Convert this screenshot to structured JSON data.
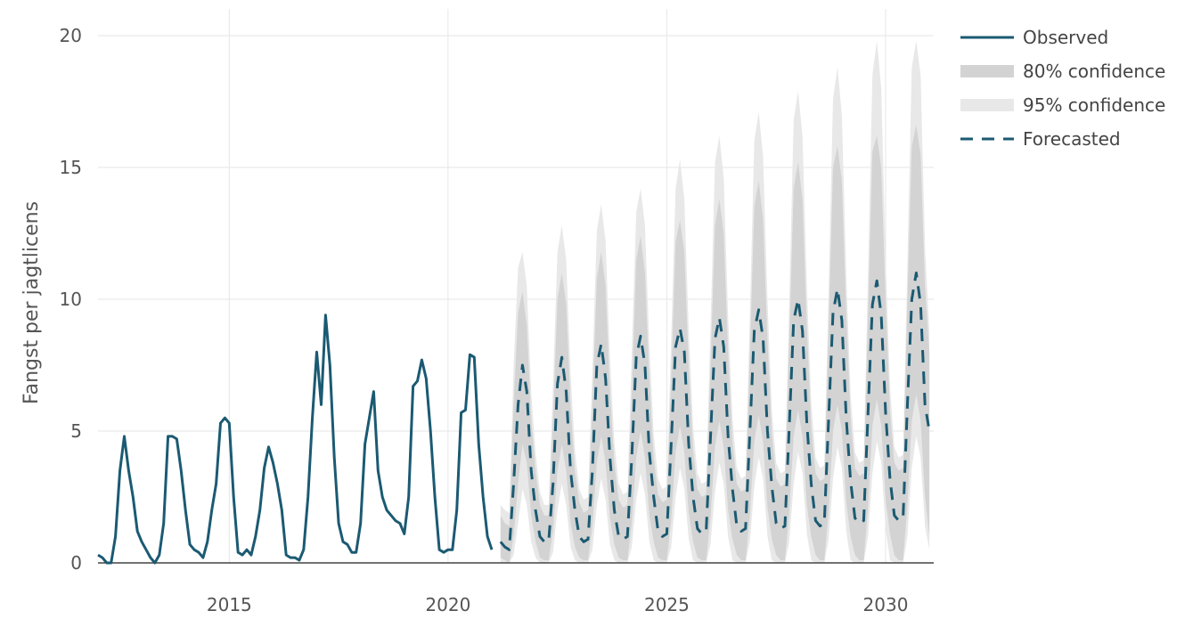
{
  "chart_data": {
    "type": "line",
    "title": "",
    "xlabel": "",
    "ylabel": "Fangst per jagtlicens",
    "xlim": [
      2012.0,
      2031.1
    ],
    "ylim": [
      0,
      20
    ],
    "x_ticks": [
      {
        "value": 2015,
        "label": "2015"
      },
      {
        "value": 2020,
        "label": "2020"
      },
      {
        "value": 2025,
        "label": "2025"
      },
      {
        "value": 2030,
        "label": "2030"
      }
    ],
    "y_ticks": [
      {
        "value": 0,
        "label": "0"
      },
      {
        "value": 5,
        "label": "5"
      },
      {
        "value": 10,
        "label": "10"
      },
      {
        "value": 15,
        "label": "15"
      },
      {
        "value": 20,
        "label": "20"
      }
    ],
    "grid": true,
    "legend_position": "top-right",
    "colors": {
      "observed": "#1b5a72",
      "forecast": "#1b5a72",
      "band80": "#d3d3d3",
      "band95": "#e8e8e8",
      "zero_line": "#444444"
    },
    "series": [
      {
        "name": "Observed",
        "style": "solid",
        "x": [
          2012.0,
          2012.1,
          2012.2,
          2012.3,
          2012.4,
          2012.5,
          2012.6,
          2012.7,
          2012.8,
          2012.9,
          2013.0,
          2013.1,
          2013.2,
          2013.3,
          2013.4,
          2013.5,
          2013.6,
          2013.7,
          2013.8,
          2013.9,
          2014.0,
          2014.1,
          2014.2,
          2014.3,
          2014.4,
          2014.5,
          2014.6,
          2014.7,
          2014.8,
          2014.9,
          2015.0,
          2015.1,
          2015.2,
          2015.3,
          2015.4,
          2015.5,
          2015.6,
          2015.7,
          2015.8,
          2015.9,
          2016.0,
          2016.1,
          2016.2,
          2016.3,
          2016.4,
          2016.5,
          2016.6,
          2016.7,
          2016.8,
          2016.9,
          2017.0,
          2017.1,
          2017.2,
          2017.3,
          2017.4,
          2017.5,
          2017.6,
          2017.7,
          2017.8,
          2017.9,
          2018.0,
          2018.1,
          2018.2,
          2018.3,
          2018.4,
          2018.5,
          2018.6,
          2018.7,
          2018.8,
          2018.9,
          2019.0,
          2019.1,
          2019.2,
          2019.3,
          2019.4,
          2019.5,
          2019.6,
          2019.7,
          2019.8,
          2019.9,
          2020.0,
          2020.1,
          2020.2,
          2020.3,
          2020.4,
          2020.5,
          2020.6,
          2020.7,
          2020.8,
          2020.9,
          2021.0
        ],
        "y": [
          0.3,
          0.2,
          0.0,
          0.0,
          1.0,
          3.5,
          4.8,
          3.5,
          2.5,
          1.2,
          0.8,
          0.5,
          0.2,
          0.0,
          0.3,
          1.5,
          4.8,
          4.8,
          4.7,
          3.5,
          2.0,
          0.7,
          0.5,
          0.4,
          0.2,
          0.8,
          2.0,
          3.0,
          5.3,
          5.5,
          5.3,
          2.5,
          0.4,
          0.3,
          0.5,
          0.3,
          1.0,
          2.0,
          3.6,
          4.4,
          3.8,
          3.0,
          2.0,
          0.3,
          0.2,
          0.2,
          0.1,
          0.5,
          2.5,
          5.5,
          8.0,
          6.0,
          9.4,
          7.5,
          4.0,
          1.5,
          0.8,
          0.7,
          0.4,
          0.4,
          1.5,
          4.5,
          5.5,
          6.5,
          3.5,
          2.5,
          2.0,
          1.8,
          1.6,
          1.5,
          1.1,
          2.5,
          6.7,
          6.9,
          7.7,
          7.0,
          5.0,
          2.5,
          0.5,
          0.4,
          0.5,
          0.5,
          2.0,
          5.7,
          5.8,
          7.9,
          7.8,
          4.5,
          2.5,
          1.0,
          0.5
        ]
      },
      {
        "name": "Forecasted",
        "style": "dash",
        "x": [
          2021.2,
          2021.3,
          2021.4,
          2021.5,
          2021.6,
          2021.7,
          2021.8,
          2021.9,
          2022.0,
          2022.1,
          2022.2,
          2022.3,
          2022.4,
          2022.5,
          2022.6,
          2022.7,
          2022.8,
          2022.9,
          2023.0,
          2023.1,
          2023.2,
          2023.3,
          2023.4,
          2023.5,
          2023.6,
          2023.7,
          2023.8,
          2023.9,
          2024.0,
          2024.1,
          2024.2,
          2024.3,
          2024.4,
          2024.5,
          2024.6,
          2024.7,
          2024.8,
          2024.9,
          2025.0,
          2025.1,
          2025.2,
          2025.3,
          2025.4,
          2025.5,
          2025.6,
          2025.7,
          2025.8,
          2025.9,
          2026.0,
          2026.1,
          2026.2,
          2026.3,
          2026.4,
          2026.5,
          2026.6,
          2026.7,
          2026.8,
          2026.9,
          2027.0,
          2027.1,
          2027.2,
          2027.3,
          2027.4,
          2027.5,
          2027.6,
          2027.7,
          2027.8,
          2027.9,
          2028.0,
          2028.1,
          2028.2,
          2028.3,
          2028.4,
          2028.5,
          2028.6,
          2028.7,
          2028.8,
          2028.9,
          2029.0,
          2029.1,
          2029.2,
          2029.3,
          2029.4,
          2029.5,
          2029.6,
          2029.7,
          2029.8,
          2029.9,
          2030.0,
          2030.1,
          2030.2,
          2030.3,
          2030.4,
          2030.5,
          2030.6,
          2030.7,
          2030.8,
          2030.9,
          2031.0
        ],
        "y": [
          0.8,
          0.6,
          0.5,
          3.0,
          6.0,
          7.5,
          6.5,
          3.5,
          2.0,
          1.0,
          0.8,
          0.8,
          3.0,
          6.8,
          7.8,
          6.5,
          3.5,
          2.0,
          1.0,
          0.8,
          0.9,
          3.5,
          7.5,
          8.3,
          7.0,
          4.0,
          2.0,
          1.0,
          0.9,
          1.0,
          4.0,
          7.8,
          8.6,
          7.5,
          4.2,
          2.5,
          1.2,
          1.0,
          1.1,
          4.5,
          8.2,
          8.9,
          8.0,
          4.5,
          2.5,
          1.3,
          1.1,
          1.2,
          4.8,
          8.5,
          9.3,
          8.2,
          4.8,
          2.8,
          1.4,
          1.2,
          1.3,
          5.0,
          8.8,
          9.6,
          8.5,
          5.0,
          2.9,
          1.5,
          1.3,
          1.4,
          5.2,
          9.2,
          10.0,
          8.8,
          5.3,
          3.0,
          1.6,
          1.4,
          1.5,
          5.5,
          9.5,
          10.4,
          9.2,
          5.5,
          3.1,
          1.7,
          1.5,
          1.6,
          5.7,
          9.8,
          10.7,
          9.4,
          5.7,
          3.2,
          1.8,
          1.6,
          1.7,
          6.0,
          10.0,
          11.0,
          9.8,
          6.0,
          5.0
        ]
      },
      {
        "name": "80% confidence",
        "style": "band",
        "x": [
          2021.2,
          2021.3,
          2021.4,
          2021.5,
          2021.6,
          2021.7,
          2021.8,
          2021.9,
          2022.0,
          2022.1,
          2022.2,
          2022.3,
          2022.4,
          2022.5,
          2022.6,
          2022.7,
          2022.8,
          2022.9,
          2023.0,
          2023.1,
          2023.2,
          2023.3,
          2023.4,
          2023.5,
          2023.6,
          2023.7,
          2023.8,
          2023.9,
          2024.0,
          2024.1,
          2024.2,
          2024.3,
          2024.4,
          2024.5,
          2024.6,
          2024.7,
          2024.8,
          2024.9,
          2025.0,
          2025.1,
          2025.2,
          2025.3,
          2025.4,
          2025.5,
          2025.6,
          2025.7,
          2025.8,
          2025.9,
          2026.0,
          2026.1,
          2026.2,
          2026.3,
          2026.4,
          2026.5,
          2026.6,
          2026.7,
          2026.8,
          2026.9,
          2027.0,
          2027.1,
          2027.2,
          2027.3,
          2027.4,
          2027.5,
          2027.6,
          2027.7,
          2027.8,
          2027.9,
          2028.0,
          2028.1,
          2028.2,
          2028.3,
          2028.4,
          2028.5,
          2028.6,
          2028.7,
          2028.8,
          2028.9,
          2029.0,
          2029.1,
          2029.2,
          2029.3,
          2029.4,
          2029.5,
          2029.6,
          2029.7,
          2029.8,
          2029.9,
          2030.0,
          2030.1,
          2030.2,
          2030.3,
          2030.4,
          2030.5,
          2030.6,
          2030.7,
          2030.8,
          2030.9,
          2031.0
        ],
        "lower": [
          0.2,
          0.1,
          0.0,
          1.0,
          3.0,
          4.5,
          3.8,
          1.8,
          0.8,
          0.2,
          0.1,
          0.1,
          1.2,
          3.5,
          4.5,
          3.5,
          1.5,
          0.6,
          0.2,
          0.1,
          0.1,
          1.4,
          3.8,
          4.8,
          3.8,
          1.7,
          0.7,
          0.2,
          0.1,
          0.1,
          1.5,
          4.0,
          5.0,
          4.0,
          1.8,
          0.8,
          0.2,
          0.1,
          0.1,
          1.6,
          4.2,
          5.2,
          4.2,
          1.9,
          0.8,
          0.2,
          0.1,
          0.1,
          1.7,
          4.4,
          5.4,
          4.4,
          2.0,
          0.9,
          0.3,
          0.1,
          0.1,
          1.8,
          4.6,
          5.6,
          4.6,
          2.1,
          0.9,
          0.3,
          0.1,
          0.1,
          1.9,
          4.8,
          5.8,
          4.8,
          2.2,
          1.0,
          0.3,
          0.1,
          0.1,
          2.0,
          5.0,
          6.0,
          5.0,
          2.3,
          1.0,
          0.3,
          0.1,
          0.1,
          2.1,
          5.2,
          6.2,
          5.2,
          2.4,
          1.1,
          0.3,
          0.1,
          0.1,
          2.2,
          5.4,
          6.4,
          5.4,
          2.5,
          1.0
        ],
        "upper": [
          1.8,
          1.5,
          1.4,
          6.0,
          9.5,
          10.3,
          9.0,
          5.5,
          3.5,
          2.2,
          1.8,
          1.8,
          5.5,
          10.0,
          11.0,
          9.8,
          6.0,
          3.5,
          2.3,
          1.9,
          2.0,
          6.0,
          10.8,
          11.8,
          10.5,
          6.5,
          3.8,
          2.4,
          2.1,
          2.2,
          6.5,
          11.5,
          12.4,
          11.0,
          7.0,
          4.0,
          2.6,
          2.3,
          2.4,
          7.0,
          12.2,
          13.0,
          11.8,
          7.5,
          4.3,
          2.8,
          2.5,
          2.6,
          7.5,
          12.8,
          13.8,
          12.5,
          8.0,
          4.6,
          3.0,
          2.7,
          2.8,
          8.0,
          13.5,
          14.5,
          13.0,
          8.5,
          4.9,
          3.2,
          2.9,
          3.0,
          8.5,
          14.2,
          15.2,
          13.8,
          9.0,
          5.2,
          3.4,
          3.1,
          3.2,
          9.0,
          15.0,
          15.8,
          14.5,
          9.5,
          5.5,
          3.6,
          3.3,
          3.4,
          9.5,
          15.6,
          16.2,
          15.0,
          10.0,
          5.8,
          3.8,
          3.5,
          3.6,
          10.0,
          15.8,
          16.6,
          15.5,
          10.5,
          8.0
        ]
      },
      {
        "name": "95% confidence",
        "style": "band",
        "x": [
          2021.2,
          2021.3,
          2021.4,
          2021.5,
          2021.6,
          2021.7,
          2021.8,
          2021.9,
          2022.0,
          2022.1,
          2022.2,
          2022.3,
          2022.4,
          2022.5,
          2022.6,
          2022.7,
          2022.8,
          2022.9,
          2023.0,
          2023.1,
          2023.2,
          2023.3,
          2023.4,
          2023.5,
          2023.6,
          2023.7,
          2023.8,
          2023.9,
          2024.0,
          2024.1,
          2024.2,
          2024.3,
          2024.4,
          2024.5,
          2024.6,
          2024.7,
          2024.8,
          2024.9,
          2025.0,
          2025.1,
          2025.2,
          2025.3,
          2025.4,
          2025.5,
          2025.6,
          2025.7,
          2025.8,
          2025.9,
          2026.0,
          2026.1,
          2026.2,
          2026.3,
          2026.4,
          2026.5,
          2026.6,
          2026.7,
          2026.8,
          2026.9,
          2027.0,
          2027.1,
          2027.2,
          2027.3,
          2027.4,
          2027.5,
          2027.6,
          2027.7,
          2027.8,
          2027.9,
          2028.0,
          2028.1,
          2028.2,
          2028.3,
          2028.4,
          2028.5,
          2028.6,
          2028.7,
          2028.8,
          2028.9,
          2029.0,
          2029.1,
          2029.2,
          2029.3,
          2029.4,
          2029.5,
          2029.6,
          2029.7,
          2029.8,
          2029.9,
          2030.0,
          2030.1,
          2030.2,
          2030.3,
          2030.4,
          2030.5,
          2030.6,
          2030.7,
          2030.8,
          2030.9,
          2031.0
        ],
        "lower": [
          0.0,
          0.0,
          0.0,
          0.3,
          1.5,
          2.8,
          2.2,
          0.8,
          0.2,
          0.0,
          0.0,
          0.0,
          0.4,
          2.0,
          3.0,
          2.2,
          0.6,
          0.1,
          0.0,
          0.0,
          0.0,
          0.5,
          2.2,
          3.2,
          2.4,
          0.7,
          0.1,
          0.0,
          0.0,
          0.0,
          0.6,
          2.4,
          3.4,
          2.6,
          0.8,
          0.1,
          0.0,
          0.0,
          0.0,
          0.6,
          2.5,
          3.6,
          2.8,
          0.9,
          0.1,
          0.0,
          0.0,
          0.0,
          0.7,
          2.7,
          3.8,
          3.0,
          1.0,
          0.1,
          0.0,
          0.0,
          0.0,
          0.8,
          2.9,
          4.0,
          3.2,
          1.0,
          0.1,
          0.0,
          0.0,
          0.0,
          0.8,
          3.0,
          4.2,
          3.4,
          1.1,
          0.1,
          0.0,
          0.0,
          0.0,
          0.9,
          3.2,
          4.4,
          3.6,
          1.2,
          0.1,
          0.0,
          0.0,
          0.0,
          1.0,
          3.4,
          4.6,
          3.8,
          1.3,
          0.1,
          0.0,
          0.0,
          0.0,
          1.0,
          3.6,
          4.8,
          4.0,
          1.4,
          0.5
        ],
        "upper": [
          2.2,
          2.0,
          1.9,
          7.5,
          11.2,
          11.8,
          10.5,
          6.5,
          4.2,
          2.7,
          2.2,
          2.2,
          6.8,
          11.8,
          12.8,
          11.5,
          7.2,
          4.3,
          2.8,
          2.4,
          2.5,
          7.4,
          12.6,
          13.6,
          12.2,
          7.8,
          4.6,
          3.0,
          2.6,
          2.7,
          8.0,
          13.3,
          14.2,
          12.8,
          8.3,
          4.9,
          3.2,
          2.8,
          2.9,
          8.5,
          14.2,
          15.3,
          13.8,
          8.9,
          5.2,
          3.4,
          3.0,
          3.1,
          9.0,
          15.2,
          16.2,
          14.6,
          9.4,
          5.5,
          3.6,
          3.2,
          3.3,
          9.5,
          16.0,
          17.1,
          15.4,
          10.0,
          5.8,
          3.8,
          3.4,
          3.5,
          10.0,
          16.8,
          17.9,
          16.2,
          10.5,
          6.1,
          4.0,
          3.6,
          3.7,
          10.5,
          17.6,
          18.8,
          17.0,
          11.0,
          6.4,
          4.2,
          3.8,
          3.9,
          11.0,
          18.5,
          19.8,
          18.0,
          11.6,
          6.7,
          4.4,
          4.0,
          4.1,
          11.5,
          18.8,
          19.8,
          18.5,
          12.0,
          8.8
        ]
      }
    ],
    "legend": [
      {
        "label": "Observed",
        "key": "observed"
      },
      {
        "label": "80% confidence",
        "key": "band80"
      },
      {
        "label": "95% confidence",
        "key": "band95"
      },
      {
        "label": "Forecasted",
        "key": "forecast"
      }
    ]
  }
}
